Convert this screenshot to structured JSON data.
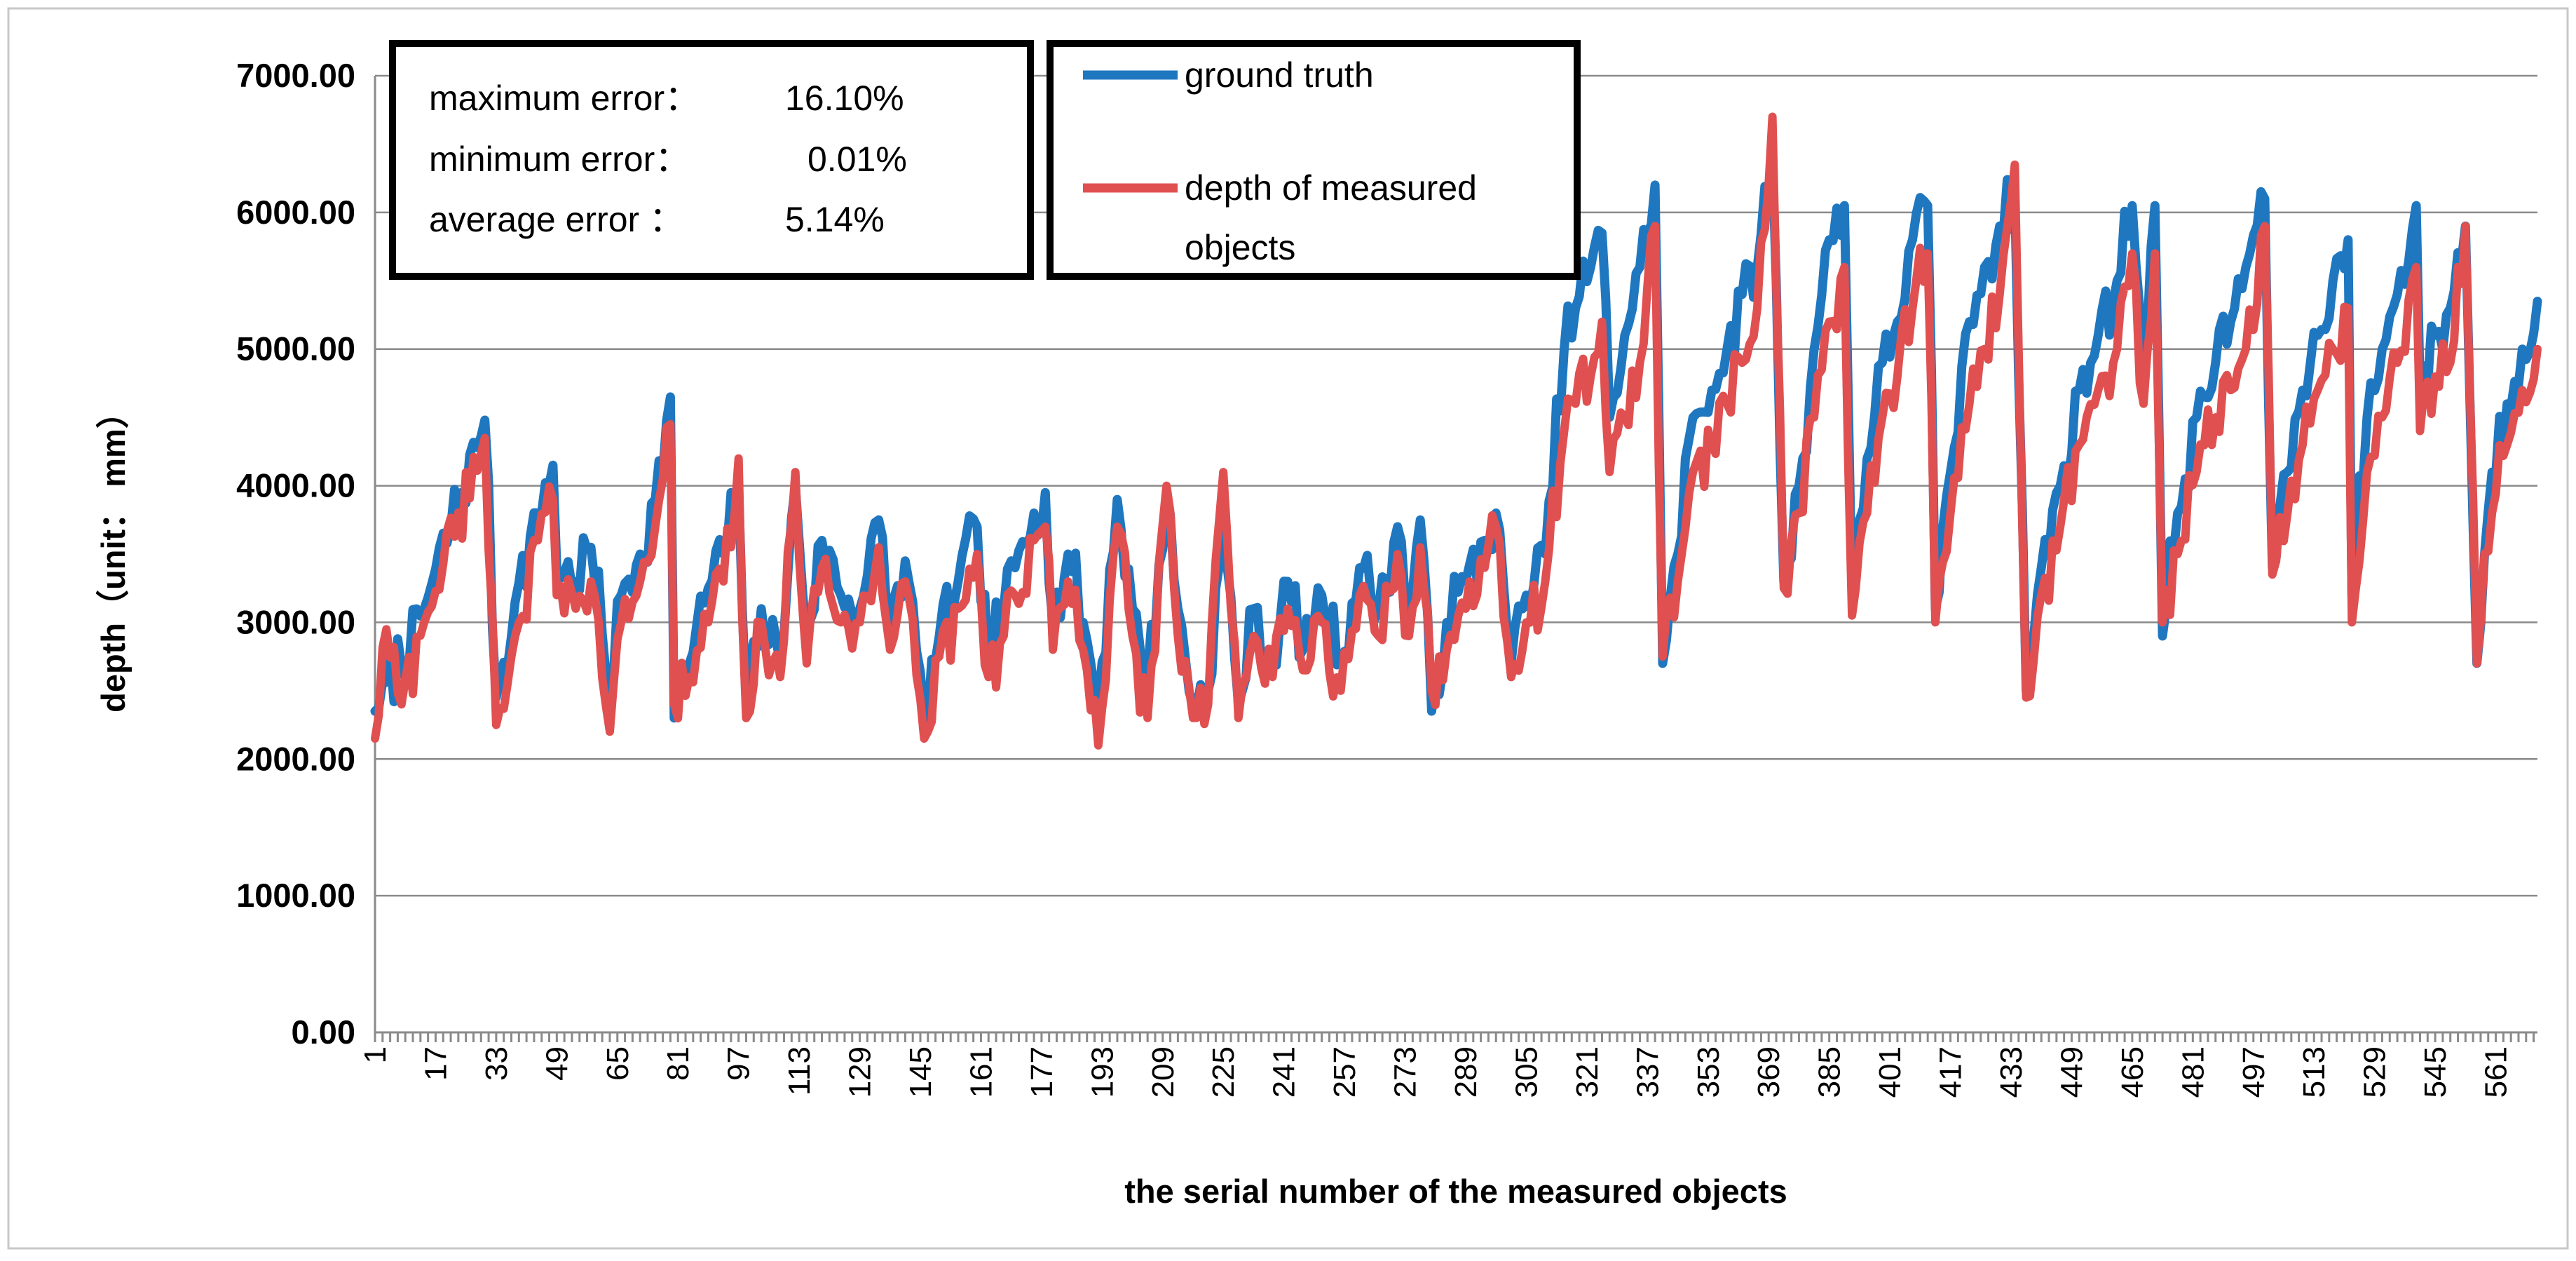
{
  "chart_data": {
    "type": "line",
    "title": "",
    "xlabel": "the serial number of the measured objects",
    "ylabel": "depth（unit： mm）",
    "ylim": [
      0,
      7000
    ],
    "y_ticks": [
      "0.00",
      "1000.00",
      "2000.00",
      "3000.00",
      "4000.00",
      "5000.00",
      "6000.00",
      "7000.00"
    ],
    "x_range": [
      1,
      572
    ],
    "x_ticks": [
      "1",
      "17",
      "33",
      "49",
      "65",
      "81",
      "97",
      "113",
      "129",
      "145",
      "161",
      "177",
      "193",
      "209",
      "225",
      "241",
      "257",
      "273",
      "289",
      "305",
      "321",
      "337",
      "353",
      "369",
      "385",
      "401",
      "417",
      "433",
      "449",
      "465",
      "481",
      "497",
      "513",
      "529",
      "545",
      "561"
    ],
    "grid": true,
    "legend": "top",
    "series": [
      {
        "name": "ground truth",
        "color": "#1f77c0",
        "anchors": [
          [
            1,
            2350
          ],
          [
            14,
            3100
          ],
          [
            30,
            4480
          ],
          [
            33,
            2450
          ],
          [
            38,
            3150
          ],
          [
            44,
            3800
          ],
          [
            48,
            4150
          ],
          [
            49,
            3400
          ],
          [
            54,
            3300
          ],
          [
            58,
            3550
          ],
          [
            63,
            2500
          ],
          [
            66,
            3200
          ],
          [
            71,
            3500
          ],
          [
            75,
            3900
          ],
          [
            79,
            4650
          ],
          [
            80,
            2300
          ],
          [
            84,
            2700
          ],
          [
            89,
            3250
          ],
          [
            93,
            3500
          ],
          [
            97,
            4000
          ],
          [
            99,
            2400
          ],
          [
            103,
            3100
          ],
          [
            108,
            2700
          ],
          [
            112,
            4000
          ],
          [
            115,
            2900
          ],
          [
            119,
            3600
          ],
          [
            124,
            3200
          ],
          [
            129,
            3100
          ],
          [
            134,
            3750
          ],
          [
            137,
            3000
          ],
          [
            141,
            3450
          ],
          [
            146,
            2300
          ],
          [
            150,
            2900
          ],
          [
            155,
            3300
          ],
          [
            160,
            3700
          ],
          [
            163,
            2700
          ],
          [
            167,
            3100
          ],
          [
            170,
            3400
          ],
          [
            175,
            3800
          ],
          [
            178,
            3950
          ],
          [
            180,
            3000
          ],
          [
            184,
            3500
          ],
          [
            188,
            3000
          ],
          [
            192,
            2400
          ],
          [
            197,
            3900
          ],
          [
            201,
            3100
          ],
          [
            205,
            2600
          ],
          [
            210,
            3900
          ],
          [
            213,
            3100
          ],
          [
            217,
            2400
          ],
          [
            221,
            2500
          ],
          [
            225,
            3700
          ],
          [
            229,
            2400
          ],
          [
            233,
            3100
          ],
          [
            238,
            2700
          ],
          [
            242,
            3300
          ],
          [
            246,
            2800
          ],
          [
            251,
            3200
          ],
          [
            256,
            2700
          ],
          [
            261,
            3400
          ],
          [
            266,
            3100
          ],
          [
            271,
            3700
          ],
          [
            274,
            3050
          ],
          [
            277,
            3750
          ],
          [
            280,
            2350
          ],
          [
            284,
            3000
          ],
          [
            289,
            3300
          ],
          [
            294,
            3600
          ],
          [
            297,
            3800
          ],
          [
            301,
            2700
          ],
          [
            305,
            3200
          ],
          [
            310,
            3500
          ],
          [
            315,
            5000
          ],
          [
            318,
            5300
          ],
          [
            322,
            5600
          ],
          [
            325,
            5850
          ],
          [
            327,
            4500
          ],
          [
            331,
            5100
          ],
          [
            335,
            5600
          ],
          [
            339,
            6200
          ],
          [
            341,
            2700
          ],
          [
            345,
            3500
          ],
          [
            349,
            4500
          ],
          [
            354,
            4700
          ],
          [
            358,
            5000
          ],
          [
            362,
            5400
          ],
          [
            366,
            5600
          ],
          [
            370,
            6400
          ],
          [
            373,
            3300
          ],
          [
            377,
            4000
          ],
          [
            381,
            5000
          ],
          [
            385,
            5800
          ],
          [
            389,
            6050
          ],
          [
            391,
            3200
          ],
          [
            395,
            4200
          ],
          [
            399,
            4900
          ],
          [
            403,
            5200
          ],
          [
            407,
            5800
          ],
          [
            411,
            6050
          ],
          [
            413,
            3100
          ],
          [
            417,
            4100
          ],
          [
            422,
            5200
          ],
          [
            426,
            5600
          ],
          [
            430,
            5900
          ],
          [
            434,
            6100
          ],
          [
            437,
            2500
          ],
          [
            441,
            3400
          ],
          [
            446,
            4000
          ],
          [
            451,
            4700
          ],
          [
            456,
            5100
          ],
          [
            461,
            5500
          ],
          [
            465,
            6050
          ],
          [
            468,
            5000
          ],
          [
            471,
            6050
          ],
          [
            473,
            2900
          ],
          [
            477,
            3800
          ],
          [
            482,
            4500
          ],
          [
            487,
            4900
          ],
          [
            491,
            5200
          ],
          [
            495,
            5600
          ],
          [
            500,
            6100
          ],
          [
            502,
            3400
          ],
          [
            506,
            4100
          ],
          [
            510,
            4700
          ],
          [
            514,
            5100
          ],
          [
            518,
            5500
          ],
          [
            522,
            5800
          ],
          [
            523,
            3200
          ],
          [
            527,
            4500
          ],
          [
            531,
            5000
          ],
          [
            535,
            5400
          ],
          [
            540,
            6050
          ],
          [
            541,
            4700
          ],
          [
            545,
            5100
          ],
          [
            549,
            5300
          ],
          [
            553,
            5900
          ],
          [
            556,
            2700
          ],
          [
            560,
            4100
          ],
          [
            564,
            4600
          ],
          [
            568,
            5000
          ],
          [
            572,
            5350
          ]
        ]
      },
      {
        "name": "depth of measured objects",
        "color": "#e05050",
        "anchors": [
          [
            1,
            2150
          ],
          [
            4,
            2950
          ],
          [
            8,
            2400
          ],
          [
            14,
            3000
          ],
          [
            30,
            4350
          ],
          [
            33,
            2250
          ],
          [
            38,
            2900
          ],
          [
            44,
            3600
          ],
          [
            48,
            3900
          ],
          [
            49,
            3200
          ],
          [
            54,
            3100
          ],
          [
            58,
            3300
          ],
          [
            63,
            2200
          ],
          [
            66,
            3000
          ],
          [
            71,
            3300
          ],
          [
            75,
            3700
          ],
          [
            79,
            4450
          ],
          [
            80,
            2400
          ],
          [
            84,
            2600
          ],
          [
            89,
            3000
          ],
          [
            93,
            3300
          ],
          [
            97,
            4200
          ],
          [
            99,
            2300
          ],
          [
            103,
            3000
          ],
          [
            108,
            2600
          ],
          [
            112,
            4100
          ],
          [
            115,
            2700
          ],
          [
            119,
            3400
          ],
          [
            124,
            3000
          ],
          [
            129,
            3000
          ],
          [
            134,
            3550
          ],
          [
            137,
            2800
          ],
          [
            141,
            3300
          ],
          [
            146,
            2150
          ],
          [
            150,
            2750
          ],
          [
            155,
            3100
          ],
          [
            160,
            3500
          ],
          [
            163,
            2600
          ],
          [
            167,
            2900
          ],
          [
            170,
            3200
          ],
          [
            175,
            3600
          ],
          [
            178,
            3700
          ],
          [
            180,
            2800
          ],
          [
            184,
            3300
          ],
          [
            188,
            2800
          ],
          [
            192,
            2100
          ],
          [
            197,
            3700
          ],
          [
            201,
            2900
          ],
          [
            205,
            2300
          ],
          [
            210,
            4000
          ],
          [
            213,
            2900
          ],
          [
            217,
            2300
          ],
          [
            221,
            2400
          ],
          [
            225,
            4100
          ],
          [
            229,
            2300
          ],
          [
            233,
            2900
          ],
          [
            238,
            2600
          ],
          [
            242,
            3100
          ],
          [
            246,
            2650
          ],
          [
            251,
            3000
          ],
          [
            256,
            2500
          ],
          [
            261,
            3200
          ],
          [
            266,
            2900
          ],
          [
            271,
            3500
          ],
          [
            274,
            2900
          ],
          [
            277,
            3550
          ],
          [
            280,
            2500
          ],
          [
            284,
            2800
          ],
          [
            289,
            3100
          ],
          [
            294,
            3400
          ],
          [
            297,
            3700
          ],
          [
            301,
            2600
          ],
          [
            305,
            3000
          ],
          [
            310,
            3300
          ],
          [
            315,
            4400
          ],
          [
            318,
            4600
          ],
          [
            322,
            4800
          ],
          [
            325,
            5200
          ],
          [
            327,
            4100
          ],
          [
            331,
            4500
          ],
          [
            335,
            4900
          ],
          [
            339,
            5900
          ],
          [
            341,
            2750
          ],
          [
            345,
            3300
          ],
          [
            349,
            4100
          ],
          [
            354,
            4300
          ],
          [
            358,
            4600
          ],
          [
            362,
            4900
          ],
          [
            366,
            5300
          ],
          [
            370,
            6700
          ],
          [
            373,
            3250
          ],
          [
            377,
            3800
          ],
          [
            381,
            4500
          ],
          [
            385,
            5200
          ],
          [
            389,
            5600
          ],
          [
            391,
            3050
          ],
          [
            395,
            3800
          ],
          [
            399,
            4500
          ],
          [
            403,
            4800
          ],
          [
            407,
            5300
          ],
          [
            411,
            5700
          ],
          [
            413,
            3000
          ],
          [
            417,
            3800
          ],
          [
            422,
            4600
          ],
          [
            426,
            5000
          ],
          [
            430,
            5400
          ],
          [
            434,
            6350
          ],
          [
            437,
            2450
          ],
          [
            441,
            3200
          ],
          [
            446,
            3700
          ],
          [
            451,
            4300
          ],
          [
            456,
            4700
          ],
          [
            461,
            5000
          ],
          [
            465,
            5700
          ],
          [
            468,
            4600
          ],
          [
            471,
            5700
          ],
          [
            473,
            3000
          ],
          [
            477,
            3500
          ],
          [
            482,
            4100
          ],
          [
            487,
            4500
          ],
          [
            491,
            4700
          ],
          [
            495,
            5000
          ],
          [
            500,
            5900
          ],
          [
            502,
            3350
          ],
          [
            506,
            3800
          ],
          [
            510,
            4300
          ],
          [
            514,
            4700
          ],
          [
            518,
            5000
          ],
          [
            522,
            5300
          ],
          [
            523,
            3000
          ],
          [
            527,
            4100
          ],
          [
            531,
            4500
          ],
          [
            535,
            4900
          ],
          [
            540,
            5600
          ],
          [
            541,
            4400
          ],
          [
            545,
            4800
          ],
          [
            549,
            4900
          ],
          [
            553,
            5900
          ],
          [
            556,
            2700
          ],
          [
            560,
            3800
          ],
          [
            564,
            4300
          ],
          [
            568,
            4700
          ],
          [
            572,
            5000
          ]
        ]
      }
    ]
  },
  "error_box": {
    "max_label": "maximum error：",
    "max_value": "16.10%",
    "min_label": "minimum error：",
    "min_value": "0.01%",
    "avg_label": "average   error ：",
    "avg_value": "5.14%"
  },
  "legend": {
    "gt_label": "ground truth",
    "meas_label_line1": "depth of measured",
    "meas_label_line2": "objects"
  }
}
